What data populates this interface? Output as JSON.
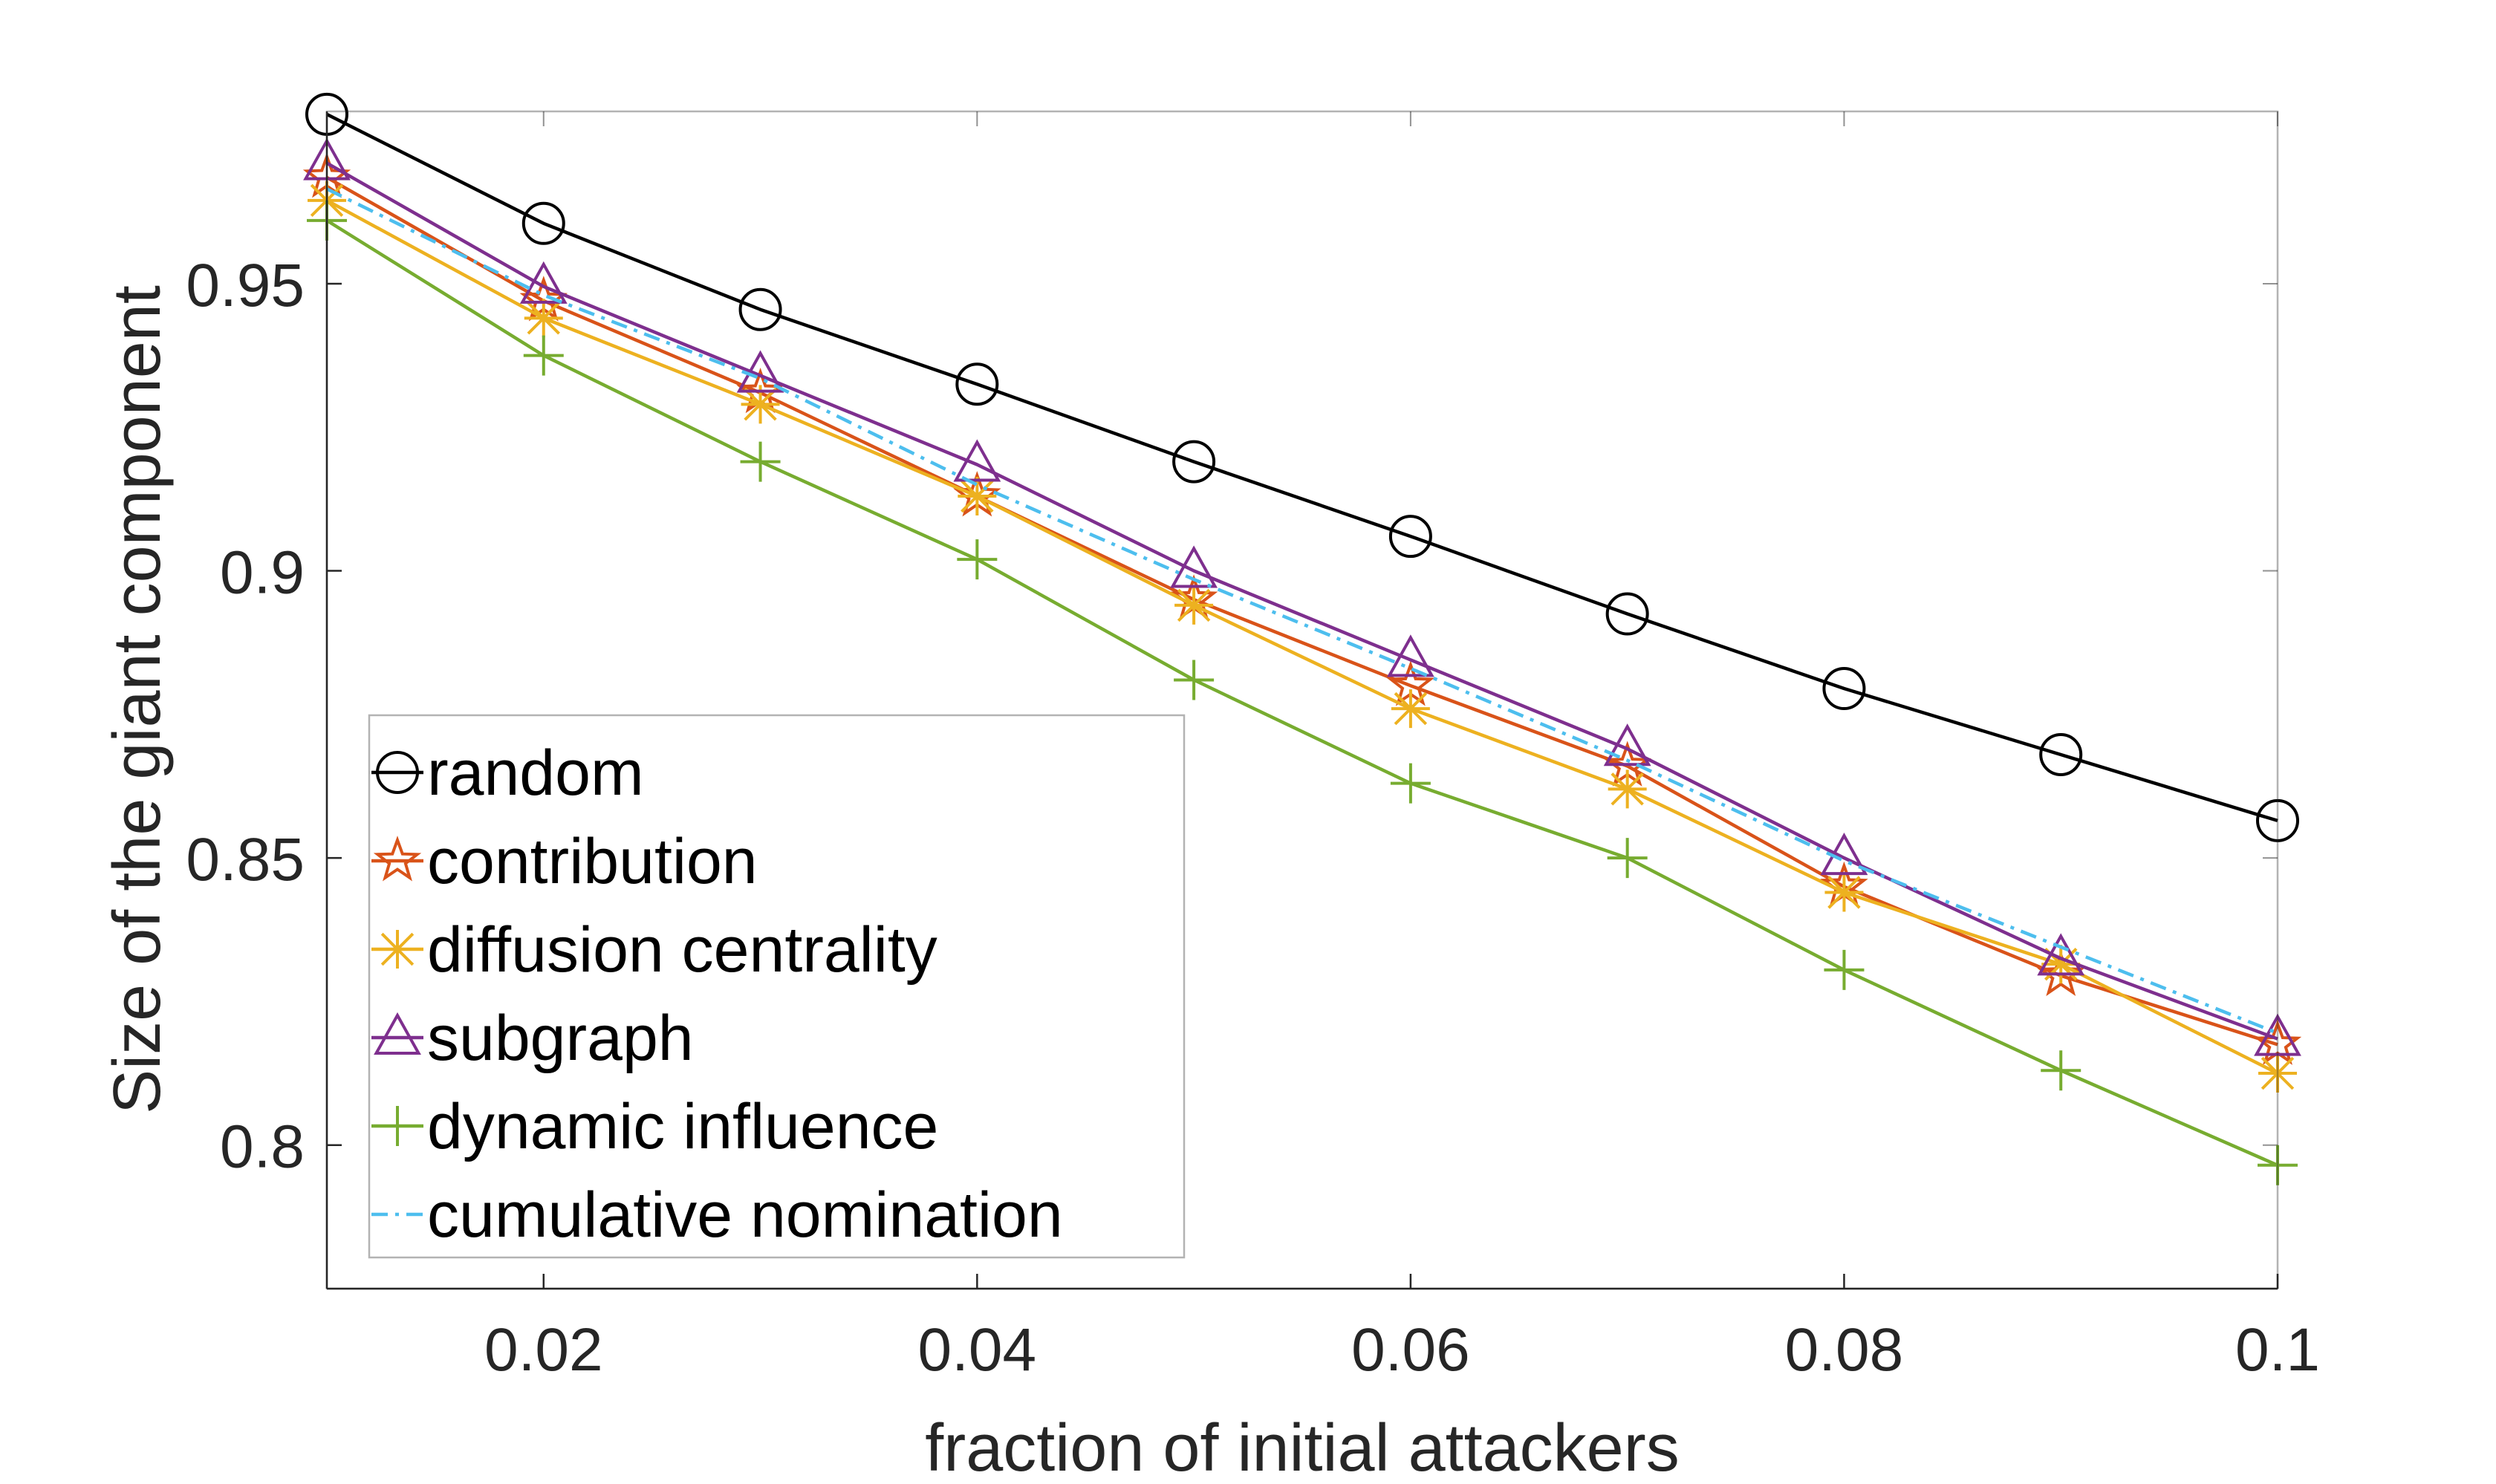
{
  "chart_data": {
    "type": "line",
    "title": "",
    "xlabel": "fraction of initial attackers",
    "ylabel": "Size of the giant component",
    "xlim": [
      0.01,
      0.1
    ],
    "ylim": [
      0.775,
      0.98
    ],
    "xticks": [
      0.02,
      0.04,
      0.06,
      0.08,
      0.1
    ],
    "xtick_labels": [
      "0.02",
      "0.04",
      "0.06",
      "0.08",
      "0.1"
    ],
    "yticks": [
      0.8,
      0.85,
      0.9,
      0.95
    ],
    "ytick_labels": [
      "0.8",
      "0.85",
      "0.9",
      "0.95"
    ],
    "grid": false,
    "legend_position": "bottom-left",
    "x": [
      0.01,
      0.02,
      0.03,
      0.04,
      0.05,
      0.06,
      0.07,
      0.08,
      0.09,
      0.1
    ],
    "series": [
      {
        "name": "random",
        "color": "#000000",
        "marker": "circle",
        "dash": "solid",
        "values": [
          0.9795,
          0.9605,
          0.9455,
          0.9325,
          0.919,
          0.906,
          0.8925,
          0.8795,
          0.868,
          0.8565
        ]
      },
      {
        "name": "contribution",
        "color": "#D95319",
        "marker": "pentagram",
        "dash": "solid",
        "values": [
          0.9685,
          0.947,
          0.931,
          0.913,
          0.895,
          0.88,
          0.866,
          0.845,
          0.8295,
          0.8175
        ]
      },
      {
        "name": "diffusion centrality",
        "color": "#EDB120",
        "marker": "asterisk",
        "dash": "solid",
        "values": [
          0.9645,
          0.944,
          0.929,
          0.913,
          0.894,
          0.876,
          0.862,
          0.844,
          0.8315,
          0.8125
        ]
      },
      {
        "name": "subgraph",
        "color": "#7E2F8E",
        "marker": "triangle",
        "dash": "solid",
        "values": [
          0.971,
          0.9495,
          0.934,
          0.9185,
          0.9,
          0.8845,
          0.869,
          0.85,
          0.8325,
          0.8185
        ]
      },
      {
        "name": "dynamic influence",
        "color": "#77AC30",
        "marker": "plus",
        "dash": "solid",
        "values": [
          0.961,
          0.9375,
          0.919,
          0.902,
          0.881,
          0.863,
          0.85,
          0.8305,
          0.813,
          0.7965
        ]
      },
      {
        "name": "cumulative nomination",
        "color": "#4DBEEE",
        "marker": "none",
        "dash": "dashdot",
        "values": [
          0.9665,
          0.948,
          0.9335,
          0.915,
          0.8985,
          0.883,
          0.867,
          0.8495,
          0.8345,
          0.8195
        ]
      }
    ]
  }
}
